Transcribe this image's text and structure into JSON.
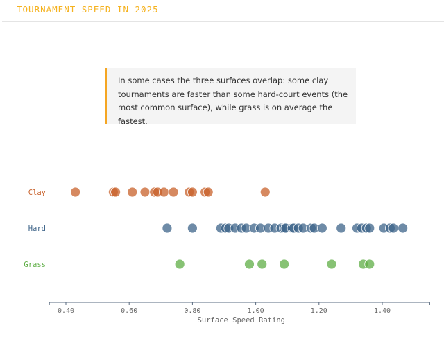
{
  "header": {
    "title": "TOURNAMENT SPEED IN 2025"
  },
  "callout": {
    "text": "In some cases the three surfaces overlap: some clay tournaments are faster than some hard-court events (the most common surface), while grass is on average the fastest."
  },
  "chart_data": {
    "type": "scatter",
    "title": "TOURNAMENT SPEED IN 2025",
    "xlabel": "Surface Speed Rating",
    "xlim": [
      0.35,
      1.55
    ],
    "xticks": [
      "0.40",
      "0.60",
      "0.80",
      "1.00",
      "1.20",
      "1.40"
    ],
    "xtick_values": [
      0.4,
      0.6,
      0.8,
      1.0,
      1.2,
      1.4
    ],
    "grid": false,
    "series": [
      {
        "name": "Clay",
        "color": "#c8612b",
        "values": [
          0.43,
          0.55,
          0.557,
          0.61,
          0.65,
          0.68,
          0.69,
          0.71,
          0.74,
          0.79,
          0.8,
          0.84,
          0.85,
          1.03
        ]
      },
      {
        "name": "Hard",
        "color": "#3e6489",
        "values": [
          0.72,
          0.8,
          0.89,
          0.905,
          0.915,
          0.935,
          0.955,
          0.97,
          0.995,
          1.015,
          1.04,
          1.06,
          1.08,
          1.09,
          1.095,
          1.115,
          1.12,
          1.135,
          1.15,
          1.175,
          1.185,
          1.21,
          1.27,
          1.32,
          1.335,
          1.35,
          1.36,
          1.405,
          1.425,
          1.435,
          1.465
        ]
      },
      {
        "name": "Grass",
        "color": "#5fae46",
        "values": [
          0.76,
          0.98,
          1.02,
          1.09,
          1.24,
          1.34,
          1.36
        ]
      }
    ]
  }
}
